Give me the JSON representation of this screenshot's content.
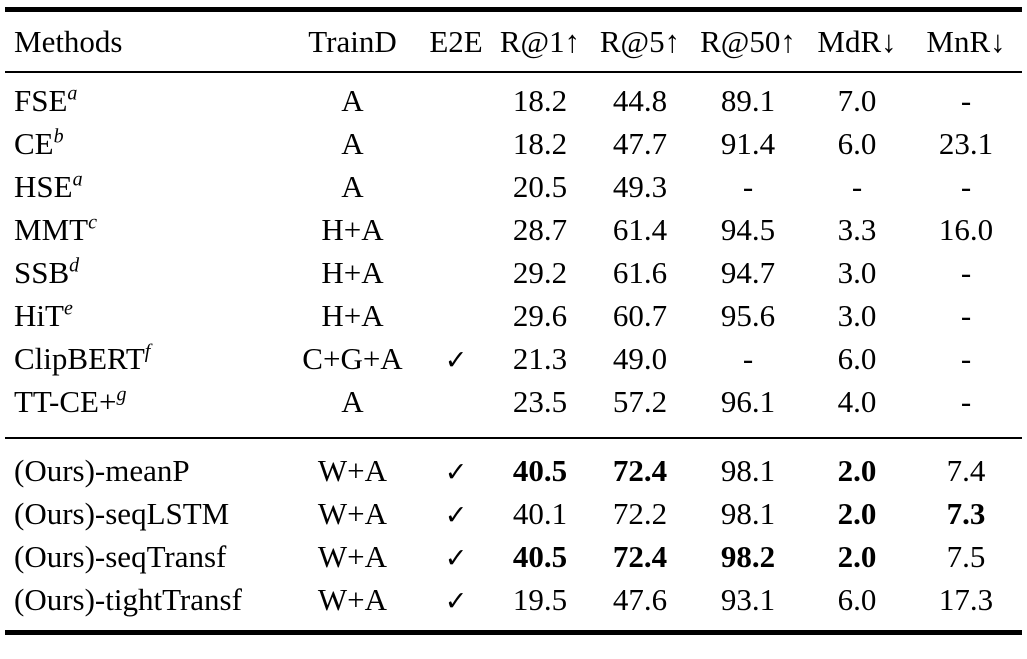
{
  "page": {
    "background_color": "#ffffff",
    "text_color": "#000000"
  },
  "table": {
    "checkmark_glyph": "✓",
    "headers": [
      "Methods",
      "TrainD",
      "E2E",
      "R@1↑",
      "R@5↑",
      "R@50↑",
      "MdR↓",
      "MnR↓"
    ],
    "metric_keys": [
      "r1",
      "r5",
      "r50",
      "mdr",
      "mnr"
    ],
    "groups": [
      {
        "name": "baselines",
        "rows": [
          {
            "method": "FSE",
            "sup": "a",
            "traind": "A",
            "e2e": false,
            "r1": "18.2",
            "r5": "44.8",
            "r50": "89.1",
            "mdr": "7.0",
            "mnr": "-",
            "bold": []
          },
          {
            "method": "CE",
            "sup": "b",
            "traind": "A",
            "e2e": false,
            "r1": "18.2",
            "r5": "47.7",
            "r50": "91.4",
            "mdr": "6.0",
            "mnr": "23.1",
            "bold": []
          },
          {
            "method": "HSE",
            "sup": "a",
            "traind": "A",
            "e2e": false,
            "r1": "20.5",
            "r5": "49.3",
            "r50": "-",
            "mdr": "-",
            "mnr": "-",
            "bold": []
          },
          {
            "method": "MMT",
            "sup": "c",
            "traind": "H+A",
            "e2e": false,
            "r1": "28.7",
            "r5": "61.4",
            "r50": "94.5",
            "mdr": "3.3",
            "mnr": "16.0",
            "bold": []
          },
          {
            "method": "SSB",
            "sup": "d",
            "traind": "H+A",
            "e2e": false,
            "r1": "29.2",
            "r5": "61.6",
            "r50": "94.7",
            "mdr": "3.0",
            "mnr": "-",
            "bold": []
          },
          {
            "method": "HiT",
            "sup": "e",
            "traind": "H+A",
            "e2e": false,
            "r1": "29.6",
            "r5": "60.7",
            "r50": "95.6",
            "mdr": "3.0",
            "mnr": "-",
            "bold": []
          },
          {
            "method": "ClipBERT",
            "sup": "f",
            "traind": "C+G+A",
            "e2e": true,
            "r1": "21.3",
            "r5": "49.0",
            "r50": "-",
            "mdr": "6.0",
            "mnr": "-",
            "bold": []
          },
          {
            "method": "TT-CE+",
            "sup": "g",
            "traind": "A",
            "e2e": false,
            "r1": "23.5",
            "r5": "57.2",
            "r50": "96.1",
            "mdr": "4.0",
            "mnr": "-",
            "bold": []
          }
        ]
      },
      {
        "name": "ours",
        "rows": [
          {
            "method": "(Ours)-meanP",
            "sup": "",
            "traind": "W+A",
            "e2e": true,
            "r1": "40.5",
            "r5": "72.4",
            "r50": "98.1",
            "mdr": "2.0",
            "mnr": "7.4",
            "bold": [
              "r1",
              "r5",
              "mdr"
            ]
          },
          {
            "method": "(Ours)-seqLSTM",
            "sup": "",
            "traind": "W+A",
            "e2e": true,
            "r1": "40.1",
            "r5": "72.2",
            "r50": "98.1",
            "mdr": "2.0",
            "mnr": "7.3",
            "bold": [
              "mdr",
              "mnr"
            ]
          },
          {
            "method": "(Ours)-seqTransf",
            "sup": "",
            "traind": "W+A",
            "e2e": true,
            "r1": "40.5",
            "r5": "72.4",
            "r50": "98.2",
            "mdr": "2.0",
            "mnr": "7.5",
            "bold": [
              "r1",
              "r5",
              "r50",
              "mdr"
            ]
          },
          {
            "method": "(Ours)-tightTransf",
            "sup": "",
            "traind": "W+A",
            "e2e": true,
            "r1": "19.5",
            "r5": "47.6",
            "r50": "93.1",
            "mdr": "6.0",
            "mnr": "17.3",
            "bold": []
          }
        ]
      }
    ]
  }
}
